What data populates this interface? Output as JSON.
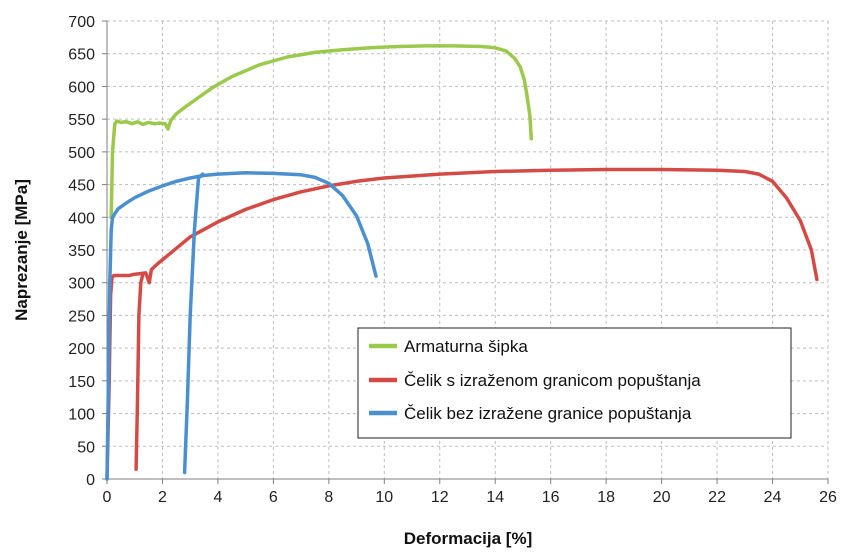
{
  "chart_data": {
    "type": "line",
    "title": "",
    "xlabel": "Deformacija [%]",
    "ylabel": "Naprezanje [MPa]",
    "xlim": [
      0,
      26
    ],
    "ylim": [
      0,
      700
    ],
    "xticks": [
      0,
      2,
      4,
      6,
      8,
      10,
      12,
      14,
      16,
      18,
      20,
      22,
      24,
      26
    ],
    "yticks": [
      0,
      50,
      100,
      150,
      200,
      250,
      300,
      350,
      400,
      450,
      500,
      550,
      600,
      650,
      700
    ],
    "grid": true,
    "legend_position": "lower-right",
    "series": [
      {
        "name": "Armaturna šipka",
        "color": "#9bc94b",
        "points": [
          [
            0.15,
            400
          ],
          [
            0.2,
            500
          ],
          [
            0.28,
            543
          ],
          [
            0.35,
            547
          ],
          [
            0.5,
            545
          ],
          [
            0.7,
            546
          ],
          [
            0.9,
            543
          ],
          [
            1.1,
            546
          ],
          [
            1.3,
            542
          ],
          [
            1.5,
            545
          ],
          [
            1.7,
            543
          ],
          [
            1.9,
            544
          ],
          [
            2.1,
            543
          ],
          [
            2.2,
            535
          ],
          [
            2.3,
            548
          ],
          [
            2.5,
            558
          ],
          [
            2.8,
            568
          ],
          [
            3.2,
            580
          ],
          [
            3.8,
            598
          ],
          [
            4.5,
            615
          ],
          [
            5.5,
            633
          ],
          [
            6.5,
            645
          ],
          [
            7.5,
            652
          ],
          [
            8.5,
            656
          ],
          [
            9.5,
            659
          ],
          [
            10.5,
            661
          ],
          [
            11.5,
            662
          ],
          [
            12.5,
            662
          ],
          [
            13.5,
            661
          ],
          [
            14.0,
            659
          ],
          [
            14.4,
            654
          ],
          [
            14.7,
            643
          ],
          [
            14.9,
            630
          ],
          [
            15.05,
            610
          ],
          [
            15.15,
            585
          ],
          [
            15.25,
            555
          ],
          [
            15.3,
            520
          ]
        ]
      },
      {
        "name": "Čelik s izraženom granicom popuštanja",
        "color": "#d44b46",
        "points": [
          [
            0,
            0
          ],
          [
            0.08,
            150
          ],
          [
            0.13,
            280
          ],
          [
            0.18,
            308
          ],
          [
            0.25,
            311
          ],
          [
            0.5,
            311
          ],
          [
            0.8,
            311
          ],
          [
            1.0,
            313
          ],
          [
            1.2,
            314
          ],
          [
            1.4,
            315
          ],
          [
            1.52,
            300
          ],
          [
            1.6,
            320
          ],
          [
            1.8,
            328
          ],
          [
            2.2,
            342
          ],
          [
            3.0,
            370
          ],
          [
            4.0,
            393
          ],
          [
            5.0,
            412
          ],
          [
            6.0,
            427
          ],
          [
            7.0,
            439
          ],
          [
            8.0,
            448
          ],
          [
            9.0,
            455
          ],
          [
            10.0,
            460
          ],
          [
            12.0,
            466
          ],
          [
            14.0,
            470
          ],
          [
            16.0,
            472
          ],
          [
            18.0,
            473
          ],
          [
            20.0,
            473
          ],
          [
            22.0,
            472
          ],
          [
            23.0,
            470
          ],
          [
            23.5,
            466
          ],
          [
            24.0,
            455
          ],
          [
            24.5,
            430
          ],
          [
            25.0,
            395
          ],
          [
            25.4,
            350
          ],
          [
            25.6,
            305
          ]
        ]
      },
      {
        "name": "Čelik s izraženom granicom popuštanja",
        "color": "#d44b46",
        "points": [
          [
            1.05,
            15
          ],
          [
            1.1,
            120
          ],
          [
            1.15,
            250
          ],
          [
            1.22,
            300
          ],
          [
            1.3,
            314
          ]
        ]
      },
      {
        "name": "Čelik bez izražene granice popuštanja",
        "color": "#4a90d0",
        "points": [
          [
            0,
            0
          ],
          [
            0.05,
            150
          ],
          [
            0.1,
            300
          ],
          [
            0.15,
            380
          ],
          [
            0.2,
            400
          ],
          [
            0.4,
            413
          ],
          [
            0.7,
            422
          ],
          [
            1.0,
            430
          ],
          [
            1.5,
            440
          ],
          [
            2.0,
            448
          ],
          [
            2.5,
            455
          ],
          [
            3.0,
            460
          ],
          [
            3.5,
            464
          ],
          [
            4.0,
            466
          ],
          [
            5.0,
            468
          ],
          [
            6.0,
            467
          ],
          [
            7.0,
            465
          ],
          [
            7.5,
            461
          ],
          [
            8.0,
            452
          ],
          [
            8.5,
            433
          ],
          [
            9.0,
            402
          ],
          [
            9.4,
            360
          ],
          [
            9.7,
            310
          ]
        ]
      },
      {
        "name": "Čelik bez izražene granice popuštanja",
        "color": "#4a90d0",
        "points": [
          [
            2.8,
            10
          ],
          [
            2.9,
            120
          ],
          [
            3.0,
            250
          ],
          [
            3.15,
            380
          ],
          [
            3.3,
            460
          ],
          [
            3.45,
            466
          ]
        ]
      }
    ],
    "legend": [
      {
        "label": "Armaturna šipka",
        "color": "#9bc94b"
      },
      {
        "label": "Čelik s izraženom granicom popuštanja",
        "color": "#d44b46"
      },
      {
        "label": "Čelik bez izražene granice popuštanja",
        "color": "#4a90d0"
      }
    ]
  }
}
